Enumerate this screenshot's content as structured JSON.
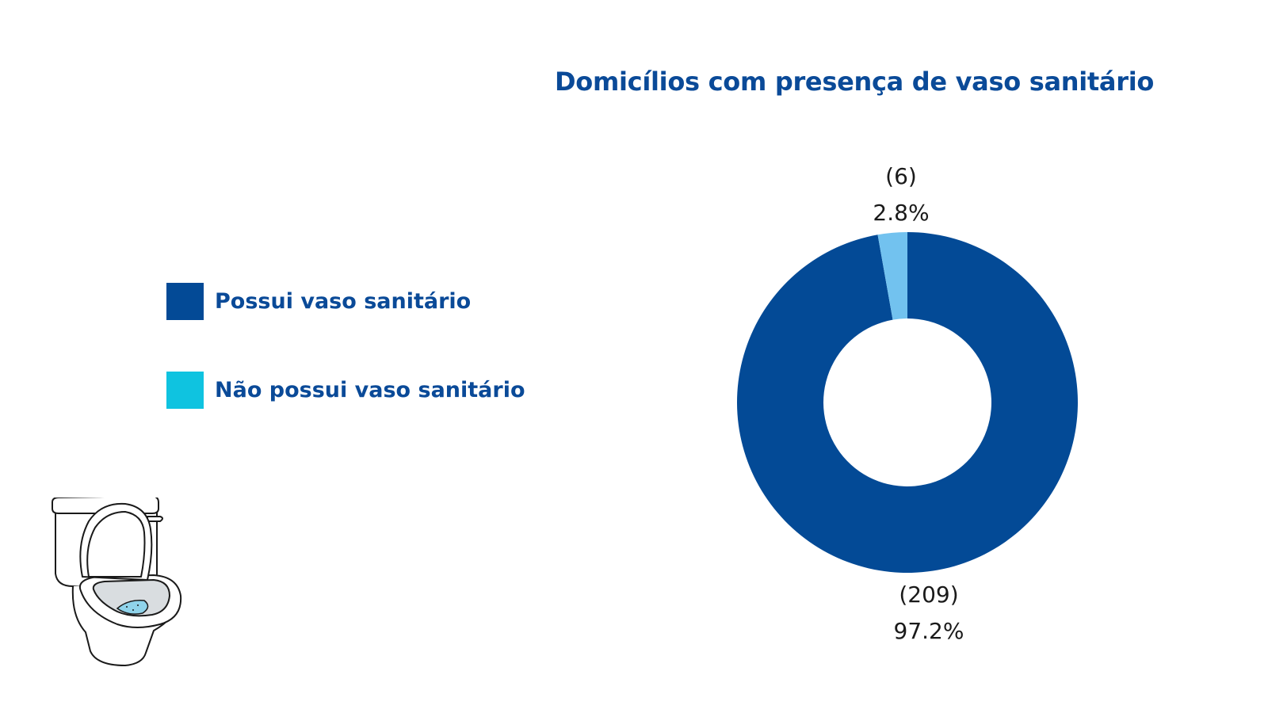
{
  "colors": {
    "title": "#0a4a98",
    "legend_text": "#0a4a98",
    "data_label": "#1a1a1a",
    "donut_hole": "#ffffff",
    "illustration_water": "#8fd3ea"
  },
  "illustration": {
    "icon": "toilet-icon"
  },
  "chart_data": {
    "type": "pie",
    "title": "Domicílios com presença de vaso sanitário",
    "legend_position": "left",
    "donut": true,
    "legend": [
      {
        "label": "Possui vaso sanitário",
        "color": "#034a96"
      },
      {
        "label": "Não possui vaso sanitário",
        "color": "#0fc3e0"
      }
    ],
    "slices": [
      {
        "label": "Possui vaso sanitário",
        "count": 209,
        "count_label": "(209)",
        "percent": 97.2,
        "percent_label": "97.2%",
        "color": "#034a96"
      },
      {
        "label": "Não possui vaso sanitário",
        "count": 6,
        "count_label": "(6)",
        "percent": 2.8,
        "percent_label": "2.8%",
        "color": "#72c2ef"
      }
    ]
  }
}
